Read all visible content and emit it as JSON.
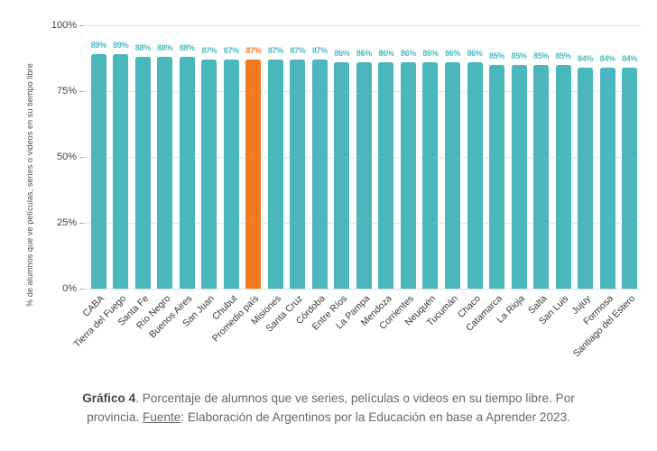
{
  "chart_data": {
    "type": "bar",
    "title": "",
    "xlabel": "",
    "ylabel": "% de alumnos que ve películas, series o videos en su tiempo libre",
    "ylim": [
      0,
      100
    ],
    "yticks": [
      0,
      25,
      50,
      75,
      100
    ],
    "ytick_suffix": "%",
    "grid": true,
    "legend_position": "none",
    "categories": [
      "CABA",
      "Tierra del Fuego",
      "Santa Fe",
      "Río Negro",
      "Buenos Aires",
      "San Juan",
      "Chubut",
      "Promedio país",
      "Misiones",
      "Santa Cruz",
      "Córdoba",
      "Entre Ríos",
      "La Pampa",
      "Mendoza",
      "Corrientes",
      "Neuquén",
      "Tucumán",
      "Chaco",
      "Catamarca",
      "La Rioja",
      "Salta",
      "San Luis",
      "Jujuy",
      "Formosa",
      "Santiago del Estero"
    ],
    "values": [
      89,
      89,
      88,
      88,
      88,
      87,
      87,
      87,
      87,
      87,
      87,
      86,
      86,
      86,
      86,
      86,
      86,
      86,
      85,
      85,
      85,
      85,
      84,
      84,
      84
    ],
    "value_suffix": "%",
    "highlight_index": 7,
    "bar_color": "#4AB7BC",
    "value_label_color": "#50BBC0",
    "highlight_color": "#F47921"
  },
  "caption": {
    "figure_label": "Gráfico 4",
    "text_after_label": ". Porcentaje de alumnos que ve series, películas o videos en su tiempo libre. Por provincia. ",
    "source_label": "Fuente",
    "source_text": ": Elaboración de Argentinos por la Educación en base a Aprender 2023."
  }
}
